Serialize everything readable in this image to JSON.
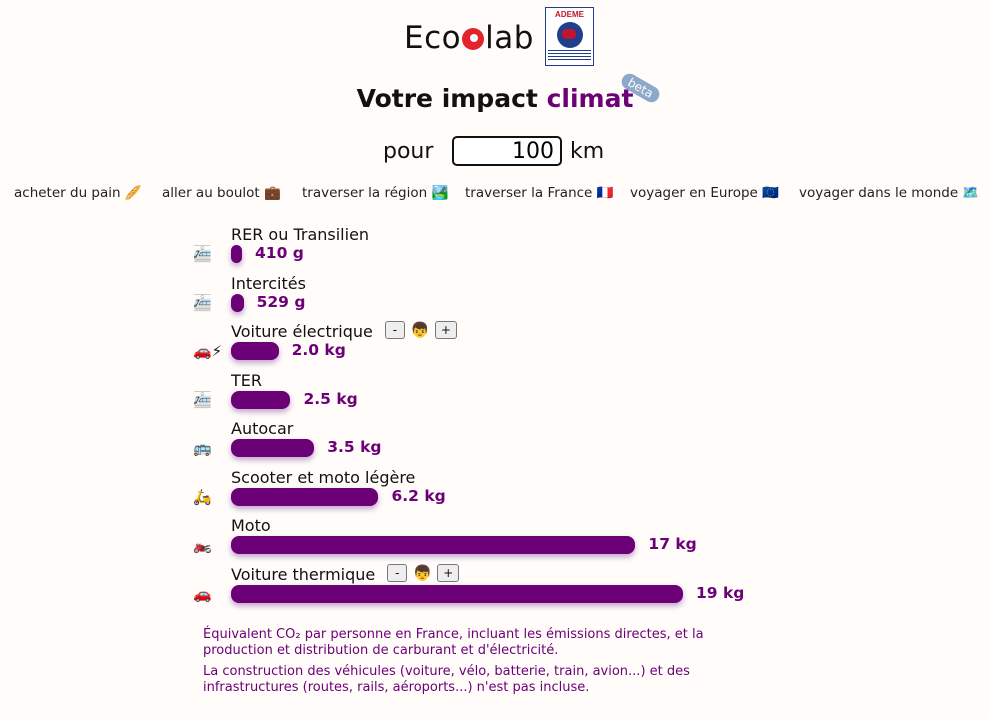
{
  "header": {
    "logo_left": "Eco",
    "logo_right": "lab",
    "ademe_label": "ADEME"
  },
  "title": {
    "prefix": "Votre impact ",
    "accent": "climat",
    "badge": "beta"
  },
  "distance": {
    "prefix": "pour",
    "value": "100",
    "unit": "km"
  },
  "presets": [
    {
      "label": "acheter du pain 🥖"
    },
    {
      "label": "aller au boulot 💼"
    },
    {
      "label": "traverser la région 🏞️"
    },
    {
      "label": "traverser la France 🇫🇷"
    },
    {
      "label": "voyager en Europe 🇪🇺"
    },
    {
      "label": "voyager dans le monde 🗺️"
    }
  ],
  "chart_data": {
    "type": "bar",
    "orientation": "horizontal",
    "unit": "kg CO2e",
    "categories": [
      "RER ou Transilien",
      "Intercités",
      "Voiture électrique",
      "TER",
      "Autocar",
      "Scooter et moto légère",
      "Moto",
      "Voiture thermique"
    ],
    "values": [
      0.41,
      0.529,
      2.0,
      2.5,
      3.5,
      6.2,
      17,
      19
    ],
    "value_labels": [
      "410 g",
      "529 g",
      "2.0 kg",
      "2.5 kg",
      "3.5 kg",
      "6.2 kg",
      "17 kg",
      "19 kg"
    ],
    "icons": [
      "🚈",
      "🚈",
      "🚗⚡",
      "🚈",
      "🚌",
      "🛵",
      "🏍️",
      "🚗"
    ],
    "controls": {
      "Voiture électrique": {
        "minus": "-",
        "face": "👦",
        "plus": "+"
      },
      "Voiture thermique": {
        "minus": "-",
        "face": "👦",
        "plus": "+"
      }
    }
  },
  "notes": [
    "Équivalent CO₂ par personne en France, incluant les émissions directes, et la production et distribution de carburant et d'électricité.",
    "La construction des véhicules (voiture, vélo, batterie, train, avion...) et des infrastructures (routes, rails, aéroports...) n'est pas incluse."
  ]
}
